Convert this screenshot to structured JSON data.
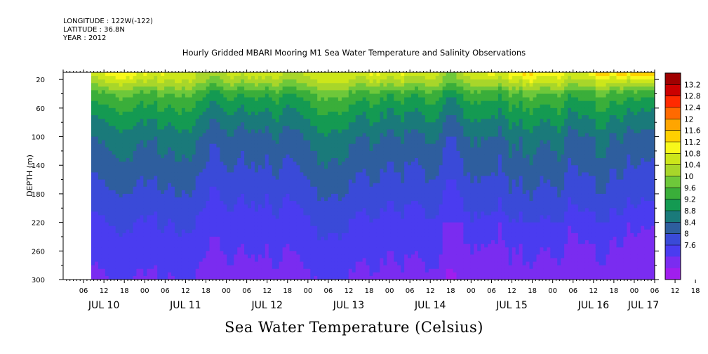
{
  "header": {
    "longitude": "LONGITUDE : 122W(-122)",
    "latitude": "LATITUDE : 36.8N",
    "year": "YEAR : 2012"
  },
  "chart_data": {
    "type": "heatmap",
    "title": "Hourly Gridded MBARI Mooring M1 Sea Water Temperature and Salinity Observations",
    "ylabel": "DEPTH (m)",
    "bottom_label": "Sea Water Temperature (Celsius)",
    "y_axis": {
      "range": [
        300,
        10
      ],
      "inverted": true,
      "ticks": [
        20,
        60,
        100,
        140,
        180,
        220,
        260,
        300
      ]
    },
    "x_axis": {
      "start": "2012-07-10 00:00",
      "end": "2012-07-17 06:00",
      "data_start": "2012-07-10 12:00",
      "hour_ticks": [
        "06",
        "12",
        "18",
        "00",
        "06",
        "12",
        "18",
        "00",
        "06",
        "12",
        "18",
        "00",
        "06",
        "12",
        "18",
        "00",
        "06",
        "12",
        "18",
        "00",
        "06",
        "12",
        "18",
        "00",
        "06",
        "12",
        "18",
        "00",
        "06",
        "12",
        "18",
        "00"
      ],
      "day_labels": [
        "JUL 10",
        "JUL 11",
        "JUL 12",
        "JUL 13",
        "JUL 14",
        "JUL 15",
        "JUL 16",
        "JUL 17"
      ]
    },
    "colorbar": {
      "levels": [
        "13.2",
        "12.8",
        "12.4",
        "12",
        "11.6",
        "11.2",
        "10.8",
        "10.4",
        "10",
        "9.6",
        "9.2",
        "8.8",
        "8.4",
        "8",
        "7.6"
      ],
      "colors": [
        "#a00000",
        "#cc0000",
        "#ff2a00",
        "#ff6a00",
        "#ffa500",
        "#ffd000",
        "#f8f81a",
        "#cce61a",
        "#a8d62a",
        "#6ec83a",
        "#3aae3a",
        "#149a52",
        "#1a7a7a",
        "#2e5e9e",
        "#3a4ad8",
        "#4a3cf0",
        "#7a2cf0",
        "#a01eee"
      ]
    },
    "profile_depths_m": [
      10,
      20,
      30,
      40,
      60,
      80,
      100,
      140,
      180,
      220,
      260,
      300
    ],
    "profile_temps_c": [
      11.4,
      11.1,
      10.7,
      10.2,
      9.8,
      9.5,
      9.2,
      8.9,
      8.6,
      8.3,
      8.1,
      7.9
    ],
    "grid": false
  }
}
